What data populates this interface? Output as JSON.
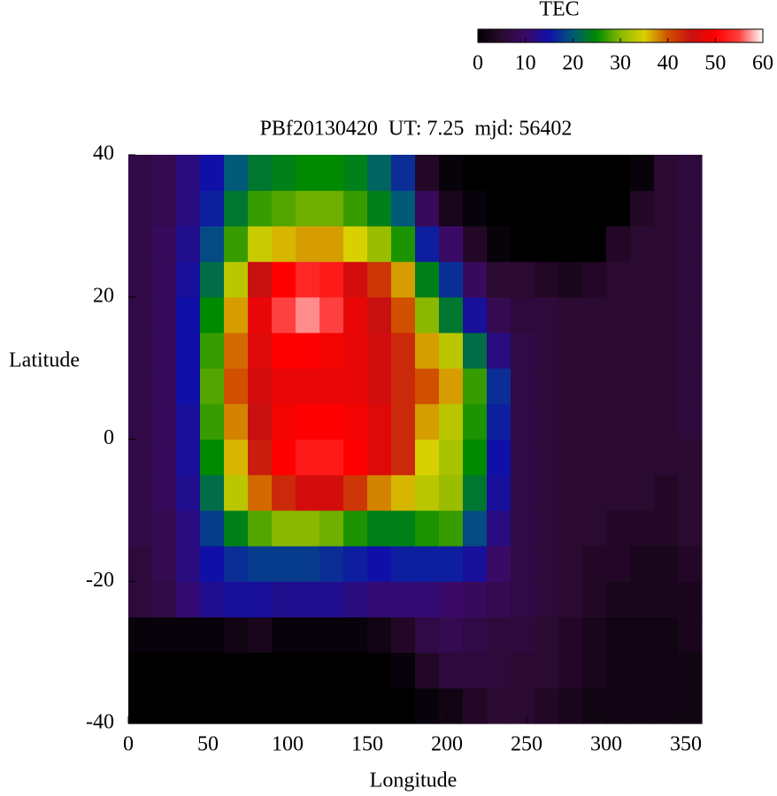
{
  "chart_data": {
    "type": "heatmap",
    "title": "PBf20130420  UT: 7.25  mjd: 56402",
    "x_label": "Longitude",
    "y_label": "Latitude",
    "colorbar_label": "TEC",
    "xlim": [
      0,
      360
    ],
    "xticks": [
      0,
      50,
      100,
      150,
      200,
      250,
      300,
      350
    ],
    "ylim": [
      -40,
      40
    ],
    "yticks": [
      -40,
      -20,
      0,
      20,
      40
    ],
    "clim": [
      0,
      60
    ],
    "cticks": [
      0,
      10,
      20,
      30,
      40,
      50,
      60
    ],
    "colormap": [
      "#000000",
      "#2a0a30",
      "#3a0a66",
      "#1010a8",
      "#005a78",
      "#008a00",
      "#8ab800",
      "#d8d000",
      "#d05000",
      "#c81010",
      "#ff0000",
      "#ff4040",
      "#ffffff"
    ],
    "x_bins": [
      0,
      15,
      30,
      45,
      60,
      75,
      90,
      105,
      120,
      135,
      150,
      165,
      180,
      195,
      210,
      225,
      240,
      255,
      270,
      285,
      300,
      315,
      330,
      345,
      360
    ],
    "y_bins": [
      -40,
      -35,
      -30,
      -25,
      -20,
      -15,
      -10,
      -5,
      0,
      5,
      10,
      15,
      20,
      25,
      30,
      35,
      40
    ],
    "values": [
      [
        0,
        0,
        0,
        0,
        0,
        0,
        0,
        0,
        0,
        0,
        0,
        0,
        1,
        2,
        4,
        5,
        5,
        4,
        3,
        2,
        2,
        2,
        2,
        2
      ],
      [
        0,
        0,
        0,
        0,
        0,
        0,
        0,
        0,
        0,
        0,
        0,
        1,
        4,
        6,
        6,
        6,
        5,
        5,
        4,
        3,
        2,
        2,
        2,
        2
      ],
      [
        1,
        1,
        1,
        1,
        2,
        3,
        1,
        1,
        1,
        1,
        2,
        4,
        7,
        8,
        7,
        6,
        6,
        5,
        4,
        3,
        2,
        2,
        2,
        3
      ],
      [
        6,
        7,
        11,
        13,
        14,
        14,
        13,
        13,
        13,
        12,
        11,
        11,
        11,
        10,
        9,
        8,
        7,
        6,
        5,
        4,
        3,
        3,
        3,
        3
      ],
      [
        6,
        8,
        12,
        15,
        17,
        18,
        18,
        18,
        17,
        16,
        15,
        16,
        16,
        16,
        14,
        10,
        7,
        6,
        5,
        4,
        4,
        3,
        3,
        4
      ],
      [
        7,
        8,
        12,
        18,
        24,
        28,
        30,
        30,
        29,
        26,
        24,
        24,
        26,
        27,
        19,
        12,
        7,
        6,
        5,
        5,
        4,
        4,
        4,
        5
      ],
      [
        7,
        9,
        13,
        22,
        33,
        39,
        43,
        46,
        46,
        42,
        38,
        36,
        33,
        31,
        23,
        14,
        7,
        6,
        5,
        5,
        5,
        5,
        4,
        5
      ],
      [
        7,
        9,
        14,
        25,
        36,
        44,
        50,
        52,
        52,
        50,
        47,
        43,
        35,
        32,
        25,
        15,
        7,
        6,
        5,
        5,
        5,
        5,
        5,
        5
      ],
      [
        7,
        9,
        14,
        27,
        38,
        45,
        49,
        50,
        50,
        49,
        47,
        43,
        37,
        33,
        26,
        16,
        7,
        6,
        5,
        5,
        5,
        5,
        5,
        6
      ],
      [
        7,
        9,
        15,
        28,
        40,
        46,
        48,
        48,
        48,
        48,
        46,
        43,
        40,
        37,
        27,
        17,
        7,
        6,
        5,
        5,
        5,
        5,
        5,
        6
      ],
      [
        7,
        9,
        15,
        27,
        39,
        47,
        50,
        50,
        49,
        48,
        46,
        43,
        37,
        33,
        22,
        12,
        7,
        6,
        5,
        5,
        5,
        5,
        5,
        6
      ],
      [
        7,
        9,
        15,
        25,
        37,
        48,
        55,
        57,
        55,
        48,
        45,
        40,
        30,
        23,
        14,
        8,
        6,
        6,
        5,
        5,
        5,
        5,
        5,
        6
      ],
      [
        7,
        9,
        14,
        22,
        33,
        45,
        50,
        53,
        52,
        46,
        42,
        37,
        24,
        17,
        9,
        5,
        5,
        4,
        3,
        4,
        5,
        5,
        5,
        6
      ],
      [
        7,
        9,
        13,
        19,
        27,
        34,
        36,
        37,
        37,
        35,
        31,
        26,
        16,
        10,
        4,
        1,
        0,
        0,
        0,
        0,
        4,
        5,
        5,
        6
      ],
      [
        7,
        8,
        12,
        16,
        23,
        27,
        28,
        29,
        29,
        27,
        24,
        20,
        9,
        3,
        1,
        0,
        0,
        0,
        0,
        0,
        0,
        4,
        5,
        6
      ],
      [
        7,
        8,
        12,
        15,
        20,
        23,
        24,
        25,
        25,
        24,
        21,
        17,
        4,
        1,
        0,
        0,
        0,
        0,
        0,
        0,
        0,
        1,
        5,
        6
      ]
    ]
  }
}
